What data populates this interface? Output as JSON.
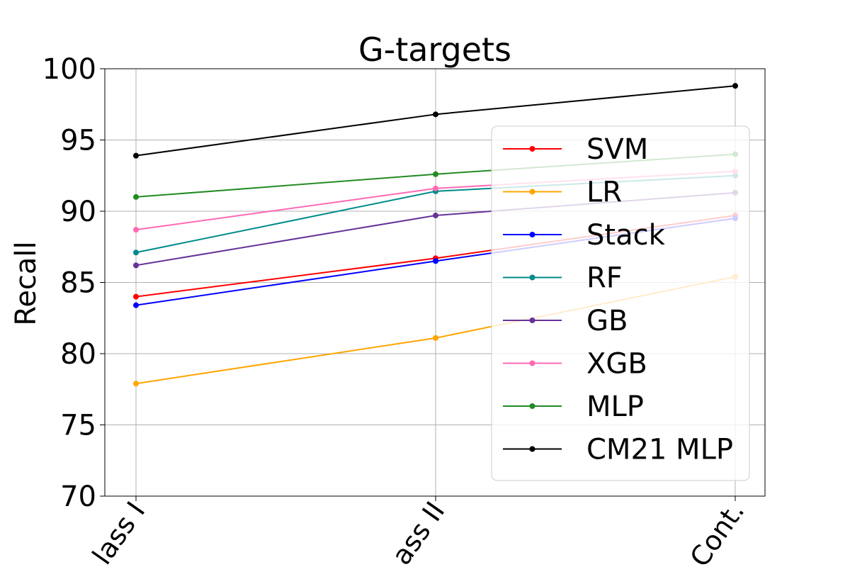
{
  "chart_data": {
    "type": "line",
    "title": "G-targets",
    "y_label": "Recall",
    "categories": [
      "lass I",
      "ass II",
      "Cont."
    ],
    "series": [
      {
        "name": "SVM",
        "color": "#ff0000",
        "values": [
          84.0,
          86.7,
          89.7
        ]
      },
      {
        "name": "LR",
        "color": "#ffa500",
        "values": [
          77.9,
          81.1,
          85.4
        ]
      },
      {
        "name": "Stack",
        "color": "#0000ff",
        "values": [
          83.4,
          86.5,
          89.5
        ]
      },
      {
        "name": "RF",
        "color": "#008b8b",
        "values": [
          87.1,
          91.4,
          92.5
        ]
      },
      {
        "name": "GB",
        "color": "#663399",
        "values": [
          86.2,
          89.7,
          91.3
        ]
      },
      {
        "name": "XGB",
        "color": "#ff69b4",
        "values": [
          88.7,
          91.6,
          92.8
        ]
      },
      {
        "name": "MLP",
        "color": "#228b22",
        "values": [
          91.0,
          92.6,
          94.0
        ]
      },
      {
        "name": "CM21 MLP",
        "color": "#000000",
        "values": [
          93.9,
          96.8,
          98.8
        ]
      }
    ],
    "ylim": [
      70,
      100
    ],
    "yticks": [
      70,
      75,
      80,
      85,
      90,
      95,
      100
    ],
    "grid": true,
    "legend": "lower right"
  }
}
